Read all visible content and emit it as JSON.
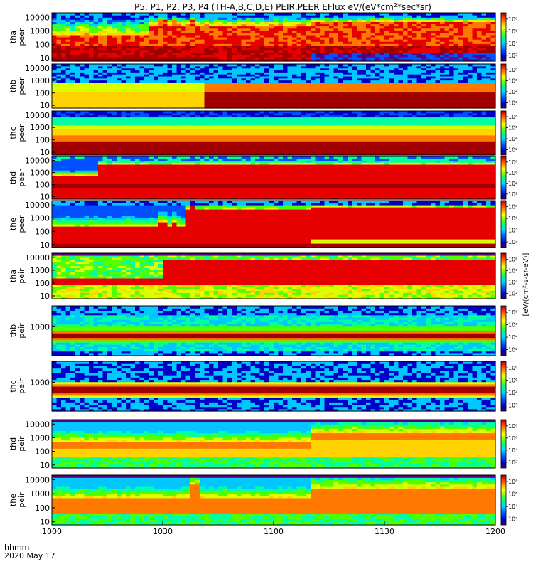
{
  "chart_data": {
    "type": "heatmap",
    "title": "P5, P1, P2, P3, P4 (TH-A,B,C,D,E) PEIR,PEER EFlux eV/(eV*cm²*sec*sr)",
    "title_parts": [
      "P5, P1, P2, P3, P4 (TH-A,B,C,D,E) PEIR,PEER EFlux eV/(eV*cm",
      "2",
      "*sec*sr)"
    ],
    "xlabel": "hhmm",
    "date_label": "2020 May 17",
    "x_ticks": [
      "1000",
      "1030",
      "1100",
      "1130",
      "1200"
    ],
    "x_range_minutes": [
      0,
      120
    ],
    "y_scale": "log",
    "colorbar_label": "[eV/(cm²-s-sr-eV)]",
    "colorbar_ticks": [
      "10²",
      "10⁴",
      "10⁶",
      "10⁸"
    ],
    "colormap": [
      "#5a0078",
      "#0000c8",
      "#0050ff",
      "#00c8ff",
      "#00ffa0",
      "#50ff00",
      "#dcff00",
      "#ffd200",
      "#ff7800",
      "#e60000",
      "#a00000"
    ],
    "panels": [
      {
        "probe": "tha",
        "species": "peer",
        "ylabel": "tha peer",
        "y_ticks": [
          "10",
          "100",
          "1000",
          "10000"
        ]
      },
      {
        "probe": "thb",
        "species": "peer",
        "ylabel": "thb peer",
        "y_ticks": [
          "10",
          "100",
          "1000",
          "10000"
        ]
      },
      {
        "probe": "thc",
        "species": "peer",
        "ylabel": "thc peer",
        "y_ticks": [
          "10",
          "100",
          "1000",
          "10000"
        ]
      },
      {
        "probe": "thd",
        "species": "peer",
        "ylabel": "thd peer",
        "y_ticks": [
          "10",
          "100",
          "1000",
          "10000"
        ]
      },
      {
        "probe": "the",
        "species": "peer",
        "ylabel": "the peer",
        "y_ticks": [
          "10",
          "100",
          "1000",
          "10000"
        ]
      },
      {
        "probe": "tha",
        "species": "peir",
        "ylabel": "tha peir",
        "y_ticks": [
          "10",
          "100",
          "1000",
          "10000"
        ]
      },
      {
        "probe": "thb",
        "species": "peir",
        "ylabel": "thb peir",
        "y_ticks": [
          "1000"
        ]
      },
      {
        "probe": "thc",
        "species": "peir",
        "ylabel": "thc peir",
        "y_ticks": [
          "1000"
        ]
      },
      {
        "probe": "thd",
        "species": "peir",
        "ylabel": "thd peir",
        "y_ticks": [
          "10",
          "100",
          "1000",
          "10000"
        ]
      },
      {
        "probe": "the",
        "species": "peir",
        "ylabel": "the peir",
        "y_ticks": [
          "10",
          "100",
          "1000",
          "10000"
        ]
      }
    ]
  }
}
